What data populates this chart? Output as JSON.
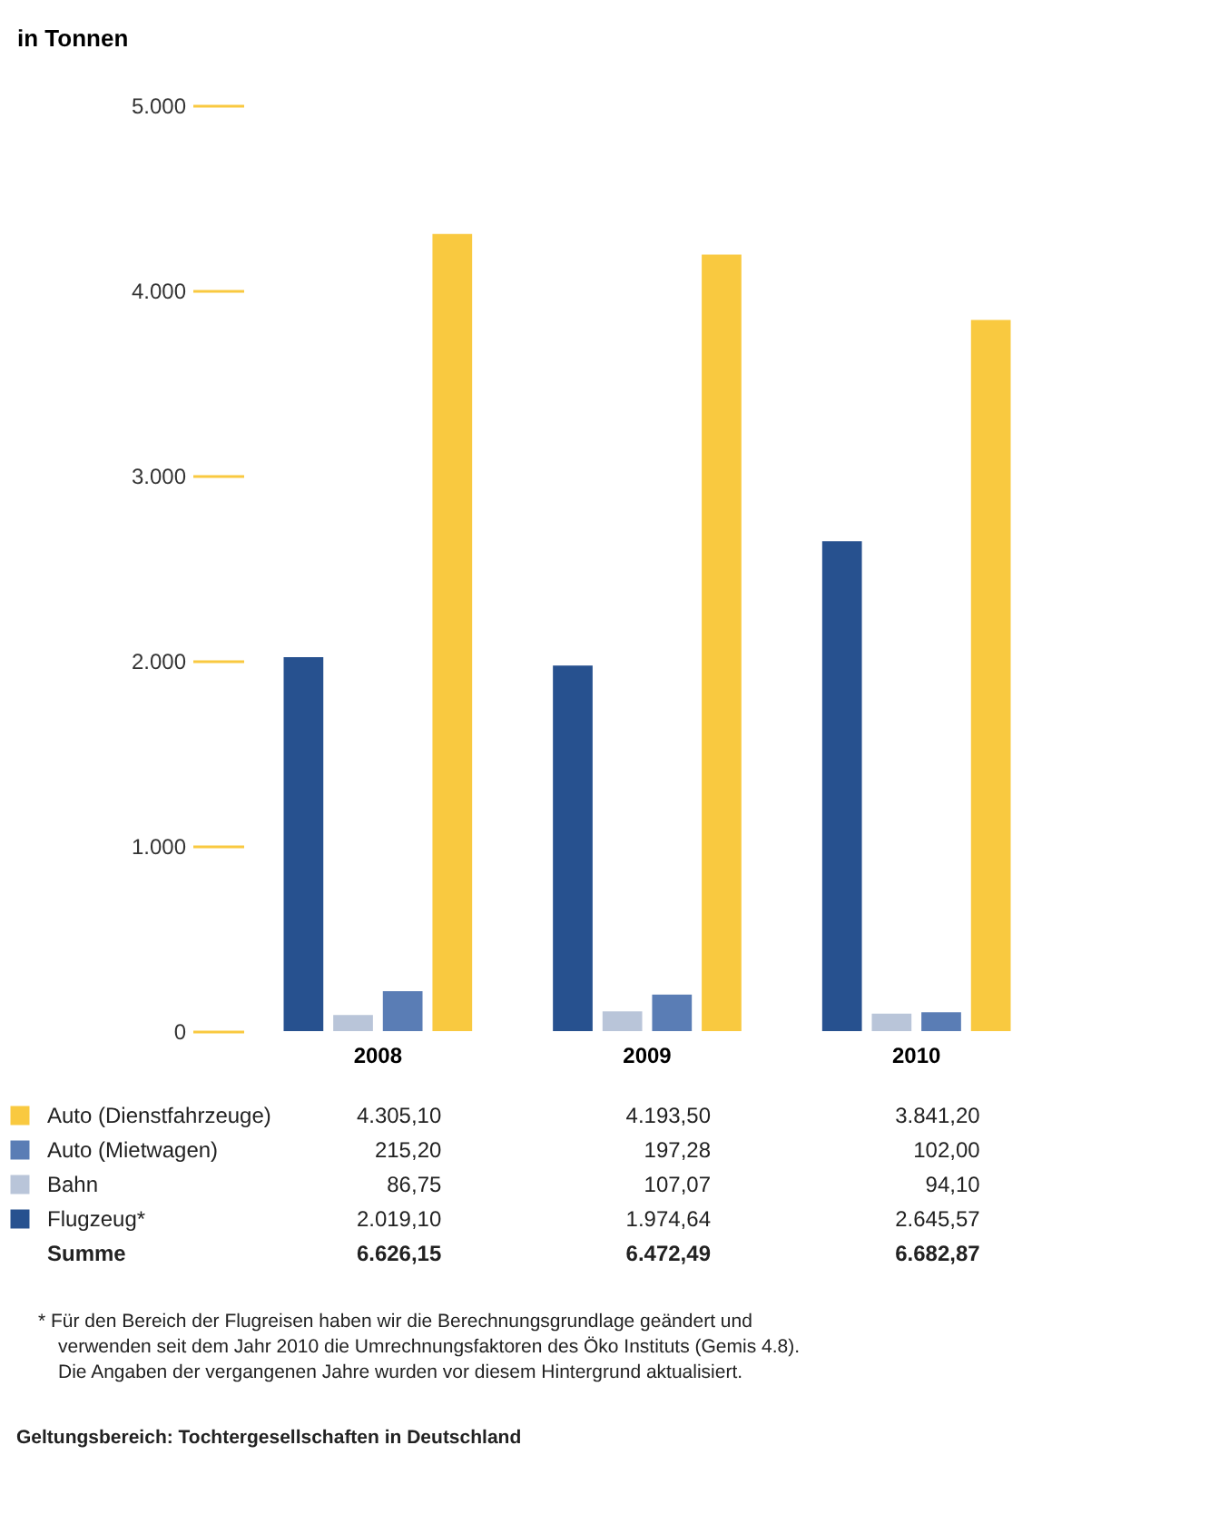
{
  "chart_data": {
    "type": "bar",
    "ylabel": "in Tonnen",
    "categories": [
      "2008",
      "2009",
      "2010"
    ],
    "series": [
      {
        "name": "Flugzeug*",
        "color": "#27518f",
        "values": [
          2019.1,
          1974.64,
          2645.57
        ],
        "value_labels": [
          "2.019,10",
          "1.974,64",
          "2.645,57"
        ]
      },
      {
        "name": "Bahn",
        "color": "#b9c5d9",
        "values": [
          86.75,
          107.07,
          94.1
        ],
        "value_labels": [
          "86,75",
          "107,07",
          "94,10"
        ]
      },
      {
        "name": "Auto (Mietwagen)",
        "color": "#5a7db5",
        "values": [
          215.2,
          197.28,
          102.0
        ],
        "value_labels": [
          "215,20",
          "197,28",
          "102,00"
        ]
      },
      {
        "name": "Auto (Dienstfahrzeuge)",
        "color": "#f9c940",
        "values": [
          4305.1,
          4193.5,
          3841.2
        ],
        "value_labels": [
          "4.305,10",
          "4.193,50",
          "3.841,20"
        ]
      }
    ],
    "ylim": [
      0,
      5000
    ],
    "yticks": [
      0,
      {
        "value": 1000,
        "label": "1.000"
      },
      {
        "value": 2000,
        "label": "2.000"
      },
      {
        "value": 3000,
        "label": "3.000"
      },
      {
        "value": 4000,
        "label": "4.000"
      },
      {
        "value": 5000,
        "label": "5.000"
      }
    ],
    "grid": false,
    "legend": "bottom",
    "annotations": [
      "Summe",
      "6.626,15",
      "6.472,49",
      "6.682,87",
      "*  Für den Bereich der Flugreisen haben wir die Berechnungsgrundlage geändert und",
      "verwenden seit dem Jahr 2010 die Umrechnungsfaktoren des Öko Instituts (Gemis 4.8).",
      "Die Angaben der vergangenen Jahre wurden vor diesem Hintergrund aktualisiert.",
      "Geltungsbereich: Tochtergesellschaften in Deutschland"
    ]
  }
}
